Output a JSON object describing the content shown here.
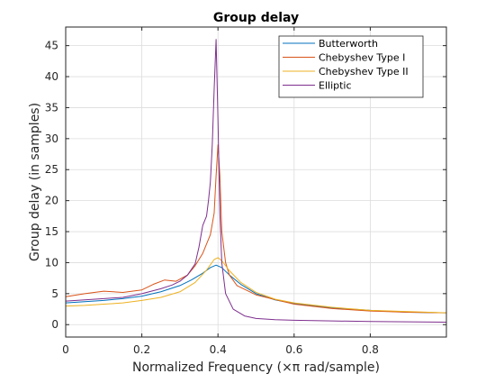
{
  "chart_data": {
    "type": "line",
    "title": "Group delay",
    "xlabel": "Normalized Frequency (×π rad/sample)",
    "ylabel": "Group delay (in samples)",
    "xlim": [
      0,
      1
    ],
    "ylim": [
      -2,
      48
    ],
    "xticks": [
      0,
      0.2,
      0.4,
      0.6,
      0.8
    ],
    "xtick_labels": [
      "0",
      "0.2",
      "0.4",
      "0.6",
      "0.8"
    ],
    "yticks": [
      0,
      5,
      10,
      15,
      20,
      25,
      30,
      35,
      40,
      45
    ],
    "ytick_labels": [
      "0",
      "5",
      "10",
      "15",
      "20",
      "25",
      "30",
      "35",
      "40",
      "45"
    ],
    "grid": true,
    "legend_position": "top-right",
    "series": [
      {
        "name": "Butterworth",
        "color": "#0072BD",
        "x": [
          0,
          0.05,
          0.1,
          0.15,
          0.2,
          0.25,
          0.3,
          0.33,
          0.36,
          0.38,
          0.395,
          0.41,
          0.43,
          0.46,
          0.5,
          0.55,
          0.6,
          0.7,
          0.8,
          0.9,
          1.0
        ],
        "y": [
          3.5,
          3.7,
          3.9,
          4.2,
          4.6,
          5.3,
          6.3,
          7.2,
          8.3,
          9.2,
          9.6,
          9.2,
          8.0,
          6.5,
          5.0,
          4.0,
          3.4,
          2.7,
          2.3,
          2.0,
          1.9
        ]
      },
      {
        "name": "Chebyshev Type I",
        "color": "#D95319",
        "x": [
          0,
          0.05,
          0.1,
          0.15,
          0.2,
          0.23,
          0.26,
          0.29,
          0.32,
          0.34,
          0.36,
          0.38,
          0.39,
          0.395,
          0.4,
          0.405,
          0.41,
          0.42,
          0.43,
          0.45,
          0.5,
          0.6,
          0.7,
          0.8,
          0.9,
          1.0
        ],
        "y": [
          4.5,
          5.0,
          5.4,
          5.2,
          5.6,
          6.5,
          7.2,
          7.0,
          8.0,
          9.5,
          11.5,
          14.5,
          18.0,
          24.0,
          29.0,
          24.0,
          15.0,
          10.0,
          8.0,
          6.3,
          4.8,
          3.3,
          2.6,
          2.2,
          2.0,
          1.9
        ]
      },
      {
        "name": "Chebyshev Type II",
        "color": "#EDB120",
        "x": [
          0,
          0.05,
          0.1,
          0.15,
          0.2,
          0.25,
          0.3,
          0.34,
          0.37,
          0.39,
          0.4,
          0.41,
          0.43,
          0.46,
          0.5,
          0.55,
          0.6,
          0.7,
          0.8,
          0.9,
          1.0
        ],
        "y": [
          3.0,
          3.1,
          3.3,
          3.5,
          3.9,
          4.4,
          5.3,
          6.8,
          8.8,
          10.5,
          10.8,
          10.3,
          8.7,
          6.8,
          5.2,
          4.1,
          3.5,
          2.8,
          2.3,
          2.1,
          1.9
        ]
      },
      {
        "name": "Elliptic",
        "color": "#7E2F8E",
        "x": [
          0,
          0.05,
          0.1,
          0.15,
          0.2,
          0.25,
          0.28,
          0.3,
          0.32,
          0.34,
          0.35,
          0.36,
          0.37,
          0.375,
          0.38,
          0.385,
          0.39,
          0.395,
          0.4,
          0.405,
          0.41,
          0.42,
          0.44,
          0.47,
          0.5,
          0.55,
          0.6,
          0.7,
          0.8,
          0.9,
          1.0
        ],
        "y": [
          3.8,
          4.0,
          4.2,
          4.4,
          5.0,
          5.8,
          6.4,
          7.0,
          8.0,
          9.8,
          12.5,
          16.0,
          17.5,
          20.0,
          23.0,
          29.0,
          38.0,
          46.0,
          33.0,
          18.0,
          10.0,
          5.0,
          2.5,
          1.4,
          1.0,
          0.8,
          0.7,
          0.6,
          0.5,
          0.45,
          0.4
        ]
      }
    ]
  }
}
